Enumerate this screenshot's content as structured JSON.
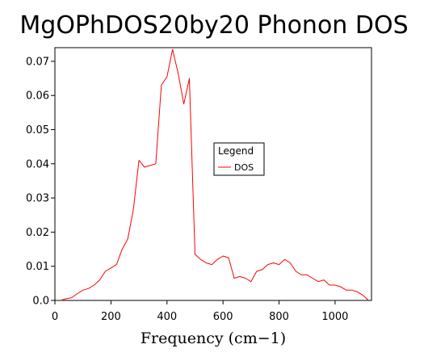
{
  "chart_data": {
    "type": "line",
    "title": "MgOPhDOS20by20 Phonon DOS",
    "xlabel": "Frequency (cm−1)",
    "ylabel": "",
    "xlim": [
      0,
      1130
    ],
    "ylim": [
      0,
      0.074
    ],
    "x_ticks": [
      0,
      200,
      400,
      600,
      800,
      1000
    ],
    "y_ticks": [
      "0.0",
      "0.01",
      "0.02",
      "0.03",
      "0.04",
      "0.05",
      "0.06",
      "0.07"
    ],
    "grid": false,
    "legend": {
      "title": "Legend",
      "position": "center-right",
      "entries": [
        "DOS"
      ]
    },
    "series": [
      {
        "name": "DOS",
        "color": "#ff0000",
        "x": [
          20,
          40,
          60,
          80,
          100,
          120,
          140,
          160,
          180,
          200,
          220,
          240,
          260,
          280,
          300,
          320,
          340,
          360,
          380,
          400,
          420,
          440,
          460,
          480,
          500,
          520,
          540,
          560,
          580,
          600,
          620,
          640,
          660,
          680,
          700,
          720,
          740,
          760,
          780,
          800,
          820,
          840,
          860,
          880,
          900,
          920,
          940,
          960,
          980,
          1000,
          1020,
          1040,
          1060,
          1080,
          1100,
          1120
        ],
        "y": [
          0.0,
          0.0005,
          0.0008,
          0.002,
          0.003,
          0.0035,
          0.0045,
          0.006,
          0.0085,
          0.0095,
          0.0105,
          0.015,
          0.018,
          0.0265,
          0.041,
          0.039,
          0.0395,
          0.04,
          0.063,
          0.0655,
          0.0735,
          0.0665,
          0.0575,
          0.065,
          0.0135,
          0.012,
          0.011,
          0.0105,
          0.012,
          0.013,
          0.0125,
          0.0065,
          0.007,
          0.0065,
          0.0055,
          0.0085,
          0.009,
          0.0105,
          0.011,
          0.0105,
          0.012,
          0.011,
          0.0085,
          0.0075,
          0.0075,
          0.0065,
          0.0055,
          0.006,
          0.0045,
          0.0045,
          0.004,
          0.003,
          0.003,
          0.0025,
          0.0015,
          0.0
        ]
      }
    ]
  }
}
